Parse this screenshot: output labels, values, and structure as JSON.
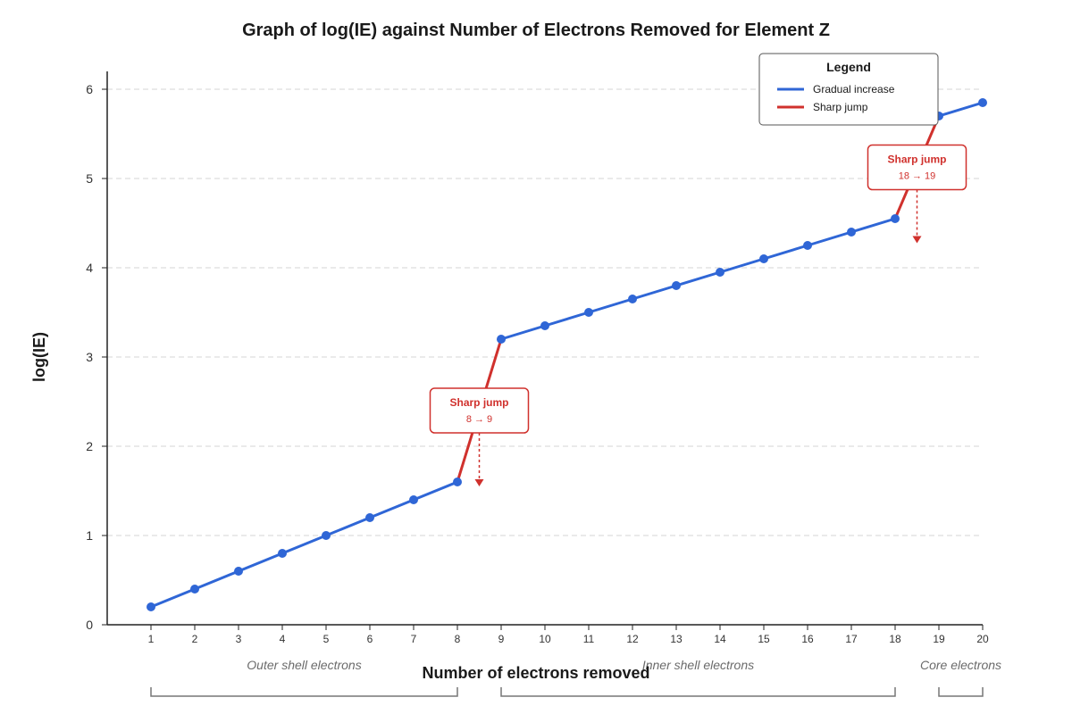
{
  "chart_data": {
    "type": "line",
    "title": "Graph of log(IE) against Number of Electrons Removed for Element Z",
    "xlabel": "Number of electrons removed",
    "ylabel": "log(IE)",
    "x": [
      1,
      2,
      3,
      4,
      5,
      6,
      7,
      8,
      9,
      10,
      11,
      12,
      13,
      14,
      15,
      16,
      17,
      18,
      19,
      20
    ],
    "y": [
      0.2,
      0.4,
      0.6,
      0.8,
      1.0,
      1.2,
      1.4,
      1.6,
      3.2,
      3.35,
      3.5,
      3.65,
      3.8,
      3.95,
      4.1,
      4.25,
      4.4,
      4.55,
      5.7,
      5.85
    ],
    "xlim": [
      0,
      20
    ],
    "ylim": [
      0,
      6.2
    ],
    "yticks": [
      0,
      1,
      2,
      3,
      4,
      5,
      6
    ],
    "xticks": [
      1,
      2,
      3,
      4,
      5,
      6,
      7,
      8,
      9,
      10,
      11,
      12,
      13,
      14,
      15,
      16,
      17,
      18,
      19,
      20
    ],
    "grid": "horizontal dashed",
    "colors": {
      "gradual": "#2f66d6",
      "jump": "#d0312d"
    },
    "legend": {
      "title": "Legend",
      "placement": "top-right",
      "entries": [
        {
          "label": "Gradual increase",
          "color": "#2f66d6"
        },
        {
          "label": "Sharp jump",
          "color": "#d0312d"
        }
      ]
    },
    "jumps": [
      {
        "from": 8,
        "to": 9,
        "label": "Sharp jump",
        "sub": "8 → 9"
      },
      {
        "from": 18,
        "to": 19,
        "label": "Sharp jump",
        "sub": "18 → 19"
      }
    ],
    "regions": [
      {
        "label": "Outer shell electrons",
        "from": 1,
        "to": 8
      },
      {
        "label": "Inner shell electrons",
        "from": 9,
        "to": 18
      },
      {
        "label": "Core electrons",
        "from": 19,
        "to": 20
      }
    ]
  }
}
